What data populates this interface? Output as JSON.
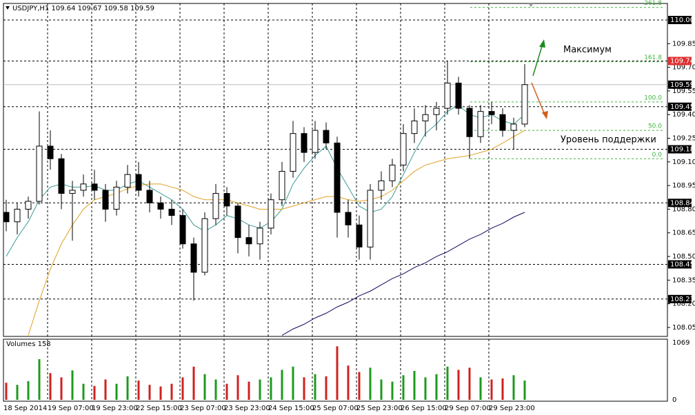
{
  "chart_data": {
    "type": "candlestick",
    "title": "USDJPY,H1  109.64 109.67 109.58 109.59",
    "xlim": [
      0,
      240.75
    ],
    "ylim": [
      107.993,
      110.105
    ],
    "xticks": [
      {
        "value": 0,
        "label": "18 Sep 2014"
      },
      {
        "value": 16,
        "label": "19 Sep 07:00"
      },
      {
        "value": 32,
        "label": "19 Sep 23:00"
      },
      {
        "value": 48,
        "label": "22 Sep 15:00"
      },
      {
        "value": 64,
        "label": "23 Sep 07:00"
      },
      {
        "value": 80,
        "label": "23 Sep 23:00"
      },
      {
        "value": 96,
        "label": "24 Sep 15:00"
      },
      {
        "value": 112,
        "label": "25 Sep 07:00"
      },
      {
        "value": 128,
        "label": "25 Sep 23:00"
      },
      {
        "value": 144,
        "label": "26 Sep 15:00"
      },
      {
        "value": 160,
        "label": "29 Sep 07:00"
      },
      {
        "value": 176,
        "label": "29 Sep 23:00"
      }
    ],
    "yticks": [
      109.85,
      {
        "value": 109.7,
        "label": "109.70"
      },
      109.55,
      {
        "value": 109.4,
        "label": "109.40"
      },
      109.25,
      {
        "value": 109.1,
        "label": "109.10"
      },
      108.95,
      {
        "value": 108.8,
        "label": "108.80"
      },
      108.65,
      {
        "value": 108.5,
        "label": "108.50"
      },
      108.35,
      {
        "value": 108.2,
        "label": "108.20"
      },
      108.05
    ],
    "levels": [
      {
        "value": 110,
        "label": "110.00",
        "color": "#000000"
      },
      {
        "value": 109.74,
        "label": "109.74",
        "color": "#e03030"
      },
      {
        "value": 109.45,
        "label": "109.45",
        "color": "#000000"
      },
      {
        "value": 109.18,
        "label": "109.18",
        "color": "#000000"
      },
      {
        "value": 108.84,
        "label": "108.84",
        "color": "#000000"
      },
      {
        "value": 108.45,
        "label": "108.45",
        "color": "#000000"
      },
      {
        "value": 108.23,
        "label": "108.23",
        "color": "#000000"
      }
    ],
    "current_price": {
      "value": 109.59,
      "label": "109.59"
    },
    "fib_levels": [
      {
        "label": "261.8",
        "price": 110.08
      },
      {
        "label": "161.8",
        "price": 109.735
      },
      {
        "label": "100.0",
        "price": 109.48
      },
      {
        "label": "50.0",
        "price": 109.3
      },
      {
        "label": "0.0",
        "price": 109.12
      }
    ],
    "annotations": [
      {
        "text": "Максимум",
        "x": 203,
        "price": 109.81
      },
      {
        "text": "Уровень поддержки",
        "x": 202,
        "price": 109.24
      }
    ],
    "x": [
      1,
      5,
      9,
      13,
      17,
      21,
      25,
      29,
      33,
      37,
      41,
      45,
      49,
      53,
      57,
      61,
      65,
      69,
      73,
      77,
      81,
      85,
      89,
      93,
      97,
      101,
      105,
      109,
      113,
      117,
      121,
      125,
      129,
      133,
      137,
      141,
      145,
      149,
      153,
      157,
      161,
      165,
      169,
      173,
      177,
      181,
      185,
      189
    ],
    "open": [
      108.78,
      108.72,
      108.8,
      108.85,
      109.2,
      109.12,
      108.9,
      108.92,
      108.96,
      108.92,
      108.8,
      108.94,
      109.02,
      108.92,
      108.84,
      108.8,
      108.76,
      108.58,
      108.4,
      108.74,
      108.9,
      108.82,
      108.62,
      108.58,
      108.68,
      108.86,
      109.04,
      109.28,
      109.16,
      109.3,
      109.22,
      108.78,
      108.7,
      108.56,
      108.92,
      108.98,
      109.08,
      109.28,
      109.36,
      109.4,
      109.44,
      109.6,
      109.44,
      109.26,
      109.42,
      109.4,
      109.3,
      109.34
    ],
    "high": [
      108.86,
      108.84,
      108.88,
      109.42,
      109.3,
      109.15,
      108.98,
      109.02,
      109.05,
      108.96,
      108.98,
      109.08,
      109.1,
      108.98,
      108.88,
      108.86,
      108.8,
      108.62,
      108.78,
      108.96,
      108.94,
      108.84,
      108.7,
      108.72,
      108.9,
      109.1,
      109.36,
      109.32,
      109.36,
      109.35,
      109.26,
      108.86,
      108.76,
      108.96,
      109.04,
      109.12,
      109.34,
      109.44,
      109.46,
      109.48,
      109.74,
      109.64,
      109.46,
      109.46,
      109.48,
      109.44,
      109.38,
      109.72
    ],
    "low": [
      108.66,
      108.64,
      108.74,
      108.83,
      109.05,
      108.8,
      108.6,
      108.88,
      108.86,
      108.72,
      108.76,
      108.9,
      108.88,
      108.78,
      108.74,
      108.7,
      108.55,
      108.22,
      108.38,
      108.7,
      108.76,
      108.52,
      108.5,
      108.48,
      108.64,
      108.82,
      109.0,
      109.1,
      109.12,
      109.18,
      108.62,
      108.62,
      108.48,
      108.48,
      108.86,
      108.94,
      109.04,
      109.22,
      109.26,
      109.3,
      109.4,
      109.4,
      109.12,
      109.22,
      109.34,
      109.26,
      109.18,
      109.32
    ],
    "close": [
      108.72,
      108.8,
      108.85,
      109.2,
      109.12,
      108.9,
      108.92,
      108.96,
      108.92,
      108.8,
      108.94,
      109.02,
      108.92,
      108.84,
      108.8,
      108.76,
      108.58,
      108.4,
      108.74,
      108.9,
      108.82,
      108.62,
      108.58,
      108.68,
      108.86,
      109.04,
      109.28,
      109.16,
      109.3,
      109.22,
      108.78,
      108.7,
      108.56,
      108.92,
      108.98,
      109.08,
      109.28,
      109.36,
      109.4,
      109.44,
      109.6,
      109.44,
      109.26,
      109.42,
      109.4,
      109.3,
      109.34,
      109.59
    ],
    "series": [
      {
        "name": "MA short",
        "color": "#3a9a94",
        "values": [
          108.5,
          108.62,
          108.72,
          108.86,
          108.94,
          108.96,
          108.94,
          108.94,
          108.95,
          108.92,
          108.92,
          108.96,
          108.98,
          108.94,
          108.9,
          108.86,
          108.8,
          108.7,
          108.66,
          108.7,
          108.76,
          108.74,
          108.7,
          108.68,
          108.72,
          108.8,
          108.96,
          109.06,
          109.14,
          109.2,
          109.06,
          108.94,
          108.82,
          108.78,
          108.8,
          108.88,
          109.02,
          109.16,
          109.28,
          109.34,
          109.42,
          109.46,
          109.4,
          109.38,
          109.4,
          109.36,
          109.34,
          109.4
        ]
      },
      {
        "name": "MA mid",
        "color": "#e0a020",
        "values": [
          null,
          null,
          108.0,
          108.22,
          108.42,
          108.58,
          108.7,
          108.8,
          108.86,
          108.88,
          108.9,
          108.93,
          108.95,
          108.96,
          108.96,
          108.94,
          108.92,
          108.88,
          108.86,
          108.86,
          108.86,
          108.84,
          108.82,
          108.8,
          108.8,
          108.8,
          108.82,
          108.84,
          108.86,
          108.88,
          108.88,
          108.86,
          108.85,
          108.86,
          108.88,
          108.92,
          108.98,
          109.04,
          109.08,
          109.1,
          109.12,
          109.13,
          109.14,
          109.16,
          109.18,
          109.22,
          109.26,
          109.3
        ]
      },
      {
        "name": "MA long",
        "color": "#0a0a60",
        "values": [
          null,
          null,
          null,
          null,
          null,
          null,
          null,
          null,
          null,
          null,
          null,
          null,
          null,
          null,
          null,
          null,
          null,
          null,
          null,
          null,
          null,
          null,
          null,
          null,
          null,
          108.0,
          108.04,
          108.07,
          108.11,
          108.14,
          108.18,
          108.21,
          108.25,
          108.28,
          108.32,
          108.36,
          108.39,
          108.43,
          108.46,
          108.5,
          108.53,
          108.57,
          108.61,
          108.64,
          108.68,
          108.71,
          108.75,
          108.78
        ]
      }
    ],
    "volume": {
      "title": "Volumes 158",
      "ylim": [
        0,
        1069
      ],
      "yticks": [
        0,
        1069
      ],
      "up_color": "#1c9a1c",
      "down_color": "#d02020",
      "values": [
        320,
        280,
        350,
        760,
        500,
        420,
        550,
        300,
        260,
        380,
        300,
        440,
        360,
        280,
        250,
        300,
        420,
        620,
        480,
        380,
        300,
        460,
        340,
        380,
        420,
        560,
        620,
        420,
        480,
        440,
        1000,
        640,
        520,
        600,
        380,
        340,
        460,
        540,
        420,
        480,
        620,
        560,
        600,
        420,
        380,
        400,
        460,
        360
      ]
    }
  }
}
